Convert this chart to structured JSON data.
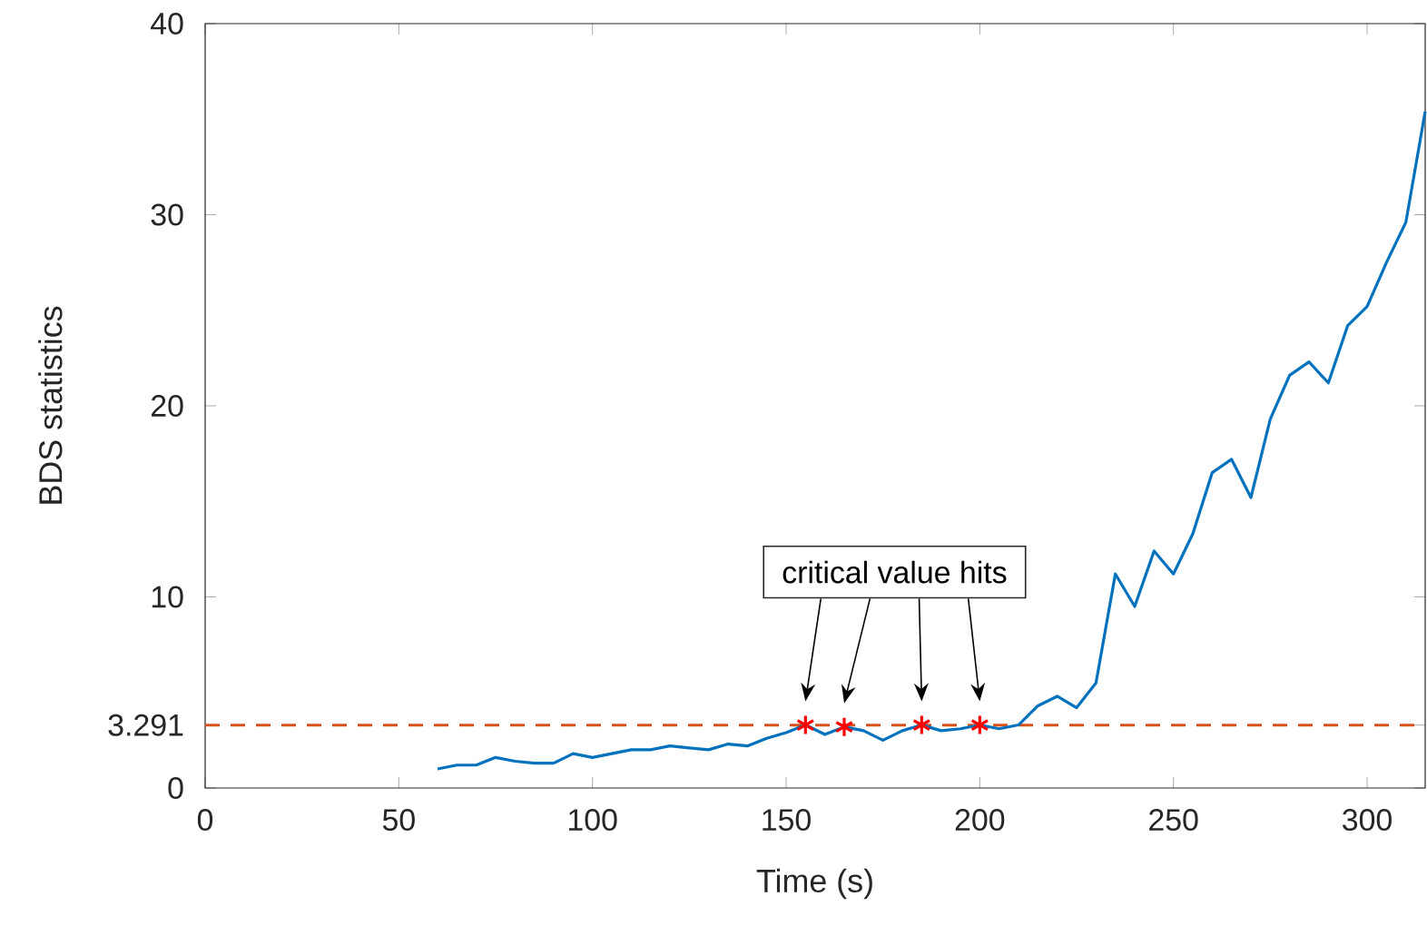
{
  "chart_data": {
    "type": "line",
    "xlabel": "Time (s)",
    "ylabel": "BDS statistics",
    "xlim": [
      0,
      315
    ],
    "ylim": [
      0,
      40
    ],
    "xticks": [
      0,
      50,
      100,
      150,
      200,
      250,
      300
    ],
    "yticks": [
      0,
      3.291,
      10,
      20,
      30,
      40
    ],
    "grid": false,
    "series": [
      {
        "color": "#0072bd",
        "marker": "none",
        "line_style": "solid",
        "x": [
          60,
          65,
          70,
          75,
          80,
          85,
          90,
          95,
          100,
          105,
          110,
          115,
          120,
          125,
          130,
          135,
          140,
          145,
          150,
          155,
          160,
          165,
          170,
          175,
          180,
          185,
          190,
          195,
          200,
          205,
          210,
          215,
          220,
          225,
          230,
          235,
          240,
          245,
          250,
          255,
          260,
          265,
          270,
          275,
          280,
          285,
          290,
          295,
          300,
          305,
          310,
          315
        ],
        "values": [
          1.0,
          1.2,
          1.2,
          1.6,
          1.4,
          1.3,
          1.3,
          1.8,
          1.6,
          1.8,
          2.0,
          2.0,
          2.2,
          2.1,
          2.0,
          2.3,
          2.2,
          2.6,
          2.9,
          3.3,
          2.8,
          3.2,
          3.0,
          2.5,
          3.0,
          3.3,
          3.0,
          3.1,
          3.3,
          3.1,
          3.3,
          4.3,
          4.8,
          4.2,
          5.5,
          11.2,
          9.5,
          12.4,
          11.2,
          13.3,
          16.5,
          17.2,
          15.2,
          19.3,
          21.6,
          22.3,
          21.2,
          24.2,
          25.2,
          27.5,
          29.6,
          35.4
        ]
      },
      {
        "type": "scatter",
        "color": "#ff0000",
        "marker": "cross",
        "x": [
          155,
          165,
          185,
          200
        ],
        "values": [
          3.3,
          3.2,
          3.3,
          3.3
        ]
      }
    ],
    "ref_lines": [
      {
        "axis": "y",
        "value": 3.291,
        "color": "#d95319",
        "line_style": "dashed"
      }
    ],
    "annotations": [
      "critical value hits"
    ]
  }
}
